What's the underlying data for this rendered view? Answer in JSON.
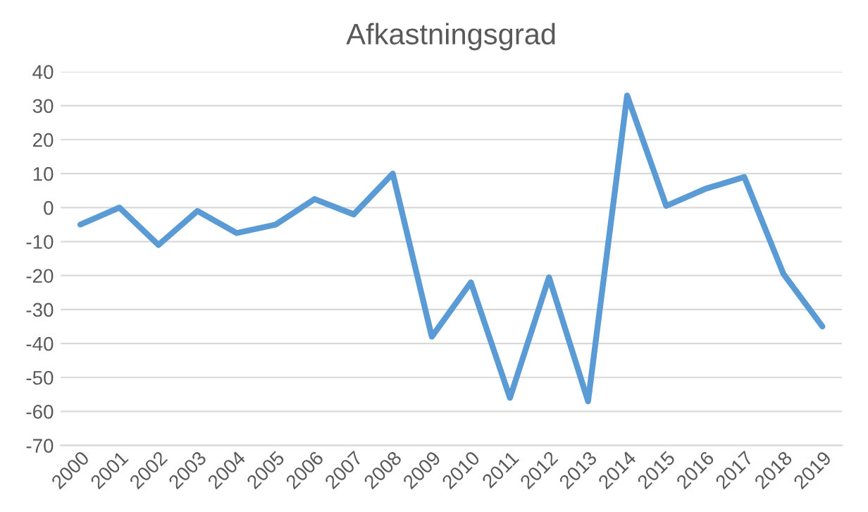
{
  "chart_data": {
    "type": "line",
    "title": "Afkastningsgrad",
    "categories": [
      "2000",
      "2001",
      "2002",
      "2003",
      "2004",
      "2005",
      "2006",
      "2007",
      "2008",
      "2009",
      "2010",
      "2011",
      "2012",
      "2013",
      "2014",
      "2015",
      "2016",
      "2017",
      "2018",
      "2019"
    ],
    "series": [
      {
        "color": "#5b9bd5",
        "values": [
          -5,
          0,
          -11,
          -1,
          -7.5,
          -5,
          2.5,
          -2,
          10,
          -38,
          -22,
          -56,
          -20.5,
          -57,
          33,
          0.5,
          5.5,
          9,
          -19.5,
          -35
        ]
      }
    ],
    "ylim": [
      -70,
      40
    ],
    "yticks": [
      -70,
      -60,
      -50,
      -40,
      -30,
      -20,
      -10,
      0,
      10,
      20,
      30,
      40
    ],
    "grid": "y",
    "legend": false,
    "marker": "none",
    "line_style": "solid"
  }
}
